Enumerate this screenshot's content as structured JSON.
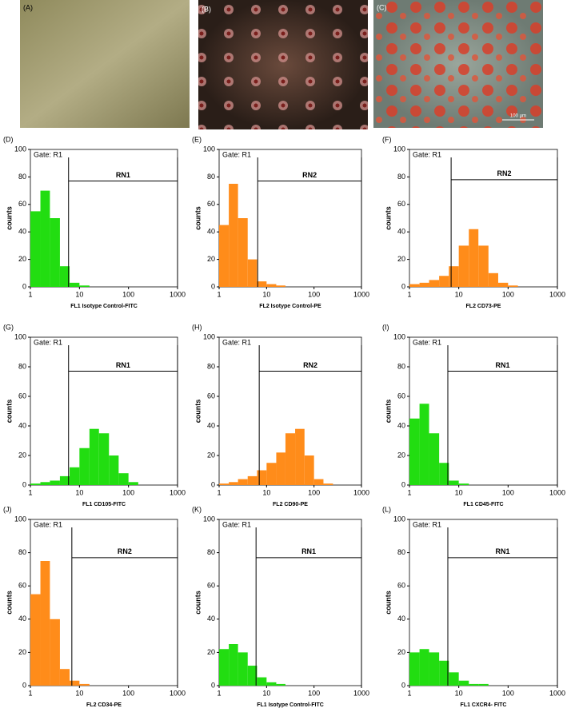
{
  "panels": [
    {
      "label": "(A)"
    },
    {
      "label": "(B)"
    },
    {
      "label": "(C)",
      "scale_bar": "100 μm"
    }
  ],
  "chart_data": [
    {
      "type": "histogram",
      "label": "(D)",
      "gate": "Gate: R1",
      "xlabel": "FL1 Isotype Control-FITC",
      "ylabel": "counts",
      "color": "#22dd11",
      "log_x": true,
      "xlim": [
        1,
        1000
      ],
      "xticks": [
        1,
        10,
        100,
        1000
      ],
      "ylim": [
        0,
        100
      ],
      "yticks": [
        0,
        20,
        40,
        60,
        80,
        100
      ],
      "bins": [
        1,
        1.6,
        2.5,
        4,
        6.3,
        10,
        16,
        25,
        40,
        63,
        100,
        158,
        251,
        398,
        631,
        1000
      ],
      "values": [
        55,
        70,
        50,
        15,
        3,
        1,
        0,
        0,
        0,
        0,
        0,
        0,
        0,
        0,
        0
      ],
      "region": {
        "label": "RN1",
        "from": 6,
        "to": 1000,
        "level": 77
      }
    },
    {
      "type": "histogram",
      "label": "(E)",
      "gate": "Gate: R1",
      "xlabel": "FL2 Isotype Control-PE",
      "ylabel": "counts",
      "color": "#ff8c1a",
      "log_x": true,
      "xlim": [
        1,
        1000
      ],
      "xticks": [
        1,
        10,
        100,
        1000
      ],
      "ylim": [
        0,
        100
      ],
      "yticks": [
        0,
        20,
        40,
        60,
        80,
        100
      ],
      "bins": [
        1,
        1.6,
        2.5,
        4,
        6.3,
        10,
        16,
        25,
        40,
        63,
        100,
        158,
        251,
        398,
        631,
        1000
      ],
      "values": [
        45,
        75,
        50,
        20,
        4,
        2,
        1,
        0,
        0,
        0,
        0,
        0,
        0,
        0,
        0
      ],
      "region": {
        "label": "RN2",
        "from": 6.5,
        "to": 1000,
        "level": 77
      }
    },
    {
      "type": "histogram",
      "label": "(F)",
      "gate": "Gate: R1",
      "xlabel": "FL2  CD73-PE",
      "ylabel": "counts",
      "color": "#ff8c1a",
      "log_x": true,
      "xlim": [
        1,
        1000
      ],
      "xticks": [
        1,
        10,
        100,
        1000
      ],
      "ylim": [
        0,
        100
      ],
      "yticks": [
        0,
        20,
        40,
        60,
        80,
        100
      ],
      "bins": [
        1,
        1.6,
        2.5,
        4,
        6.3,
        10,
        16,
        25,
        40,
        63,
        100,
        158,
        251,
        398,
        631,
        1000
      ],
      "values": [
        2,
        3,
        5,
        8,
        15,
        30,
        42,
        30,
        10,
        3,
        1,
        0,
        0,
        0,
        0
      ],
      "region": {
        "label": "RN2",
        "from": 7,
        "to": 1000,
        "level": 78
      }
    },
    {
      "type": "histogram",
      "label": "(G)",
      "gate": "Gate: R1",
      "xlabel": "FL1  CD105-FITC",
      "ylabel": "counts",
      "color": "#22dd11",
      "log_x": true,
      "xlim": [
        1,
        1000
      ],
      "xticks": [
        1,
        10,
        100,
        1000
      ],
      "ylim": [
        0,
        100
      ],
      "yticks": [
        0,
        20,
        40,
        60,
        80,
        100
      ],
      "bins": [
        1,
        1.6,
        2.5,
        4,
        6.3,
        10,
        16,
        25,
        40,
        63,
        100,
        158,
        251,
        398,
        631,
        1000
      ],
      "values": [
        1,
        2,
        3,
        6,
        12,
        25,
        38,
        35,
        20,
        8,
        2,
        0,
        0,
        0,
        0
      ],
      "region": {
        "label": "RN1",
        "from": 6,
        "to": 1000,
        "level": 77
      }
    },
    {
      "type": "histogram",
      "label": "(H)",
      "gate": "Gate: R1",
      "xlabel": "FL2  CD90-PE",
      "ylabel": "counts",
      "color": "#ff8c1a",
      "log_x": true,
      "xlim": [
        1,
        1000
      ],
      "xticks": [
        1,
        10,
        100,
        1000
      ],
      "ylim": [
        0,
        100
      ],
      "yticks": [
        0,
        20,
        40,
        60,
        80,
        100
      ],
      "bins": [
        1,
        1.6,
        2.5,
        4,
        6.3,
        10,
        16,
        25,
        40,
        63,
        100,
        158,
        251,
        398,
        631,
        1000
      ],
      "values": [
        1,
        2,
        4,
        6,
        10,
        15,
        22,
        35,
        38,
        20,
        4,
        1,
        0,
        0,
        0
      ],
      "region": {
        "label": "RN2",
        "from": 7,
        "to": 1000,
        "level": 77
      }
    },
    {
      "type": "histogram",
      "label": "(I)",
      "gate": "Gate: R1",
      "xlabel": "FL1  CD45-FITC",
      "ylabel": "counts",
      "color": "#22dd11",
      "log_x": true,
      "xlim": [
        1,
        1000
      ],
      "xticks": [
        1,
        10,
        100,
        1000
      ],
      "ylim": [
        0,
        100
      ],
      "yticks": [
        0,
        20,
        40,
        60,
        80,
        100
      ],
      "bins": [
        1,
        1.6,
        2.5,
        4,
        6.3,
        10,
        16,
        25,
        40,
        63,
        100,
        158,
        251,
        398,
        631,
        1000
      ],
      "values": [
        45,
        55,
        35,
        15,
        3,
        1,
        0,
        0,
        0,
        0,
        0,
        0,
        0,
        0,
        0
      ],
      "region": {
        "label": "RN1",
        "from": 6,
        "to": 1000,
        "level": 77
      }
    },
    {
      "type": "histogram",
      "label": "(J)",
      "gate": "Gate: R1",
      "xlabel": "FL2  CD34-PE",
      "ylabel": "counts",
      "color": "#ff8c1a",
      "log_x": true,
      "xlim": [
        1,
        1000
      ],
      "xticks": [
        1,
        10,
        100,
        1000
      ],
      "ylim": [
        0,
        100
      ],
      "yticks": [
        0,
        20,
        40,
        60,
        80,
        100
      ],
      "bins": [
        1,
        1.6,
        2.5,
        4,
        6.3,
        10,
        16,
        25,
        40,
        63,
        100,
        158,
        251,
        398,
        631,
        1000
      ],
      "values": [
        55,
        75,
        40,
        10,
        3,
        1,
        0,
        0,
        0,
        0,
        0,
        0,
        0,
        0,
        0
      ],
      "region": {
        "label": "RN2",
        "from": 7,
        "to": 1000,
        "level": 77
      }
    },
    {
      "type": "histogram",
      "label": "(K)",
      "gate": "Gate: R1",
      "xlabel": "FL1 Isotype Control-FITC",
      "ylabel": "counts",
      "color": "#22dd11",
      "log_x": true,
      "xlim": [
        1,
        1000
      ],
      "xticks": [
        1,
        10,
        100,
        1000
      ],
      "ylim": [
        0,
        100
      ],
      "yticks": [
        0,
        20,
        40,
        60,
        80,
        100
      ],
      "bins": [
        1,
        1.6,
        2.5,
        4,
        6.3,
        10,
        16,
        25,
        40,
        63,
        100,
        158,
        251,
        398,
        631,
        1000
      ],
      "values": [
        22,
        25,
        20,
        12,
        5,
        2,
        1,
        0,
        0,
        0,
        0,
        0,
        0,
        0,
        0
      ],
      "region": {
        "label": "RN1",
        "from": 6,
        "to": 1000,
        "level": 77
      }
    },
    {
      "type": "histogram",
      "label": "(L)",
      "gate": "Gate: R1",
      "xlabel": "FL1  CXCR4- FITC",
      "ylabel": "counts",
      "color": "#22dd11",
      "log_x": true,
      "xlim": [
        1,
        1000
      ],
      "xticks": [
        1,
        10,
        100,
        1000
      ],
      "ylim": [
        0,
        100
      ],
      "yticks": [
        0,
        20,
        40,
        60,
        80,
        100
      ],
      "bins": [
        1,
        1.6,
        2.5,
        4,
        6.3,
        10,
        16,
        25,
        40,
        63,
        100,
        158,
        251,
        398,
        631,
        1000
      ],
      "values": [
        20,
        22,
        20,
        15,
        8,
        3,
        1,
        1,
        0,
        0,
        0,
        0,
        0,
        0,
        0
      ],
      "region": {
        "label": "RN1",
        "from": 6,
        "to": 1000,
        "level": 77
      }
    }
  ]
}
